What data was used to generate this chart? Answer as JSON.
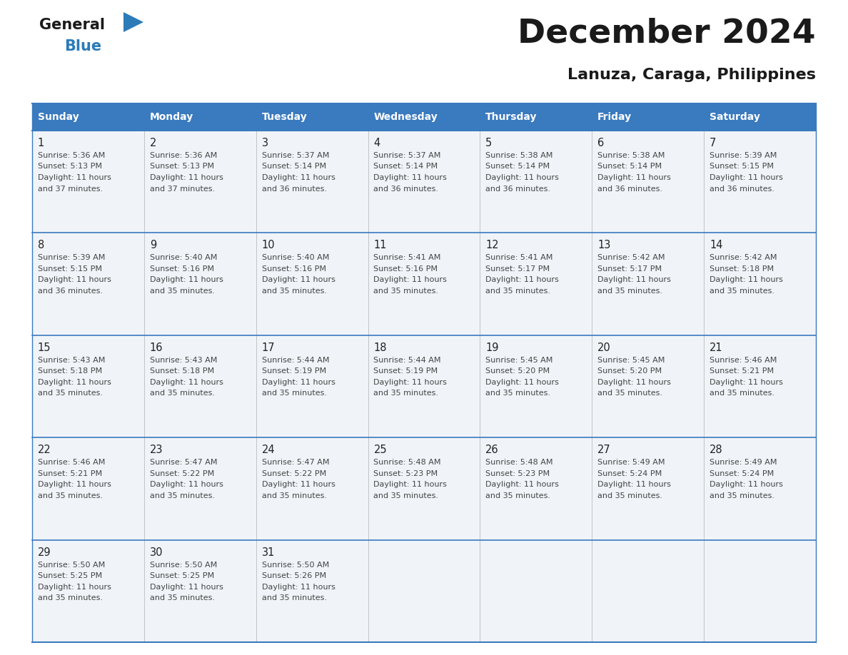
{
  "title": "December 2024",
  "subtitle": "Lanuza, Caraga, Philippines",
  "header_bg_color": "#3a7abf",
  "header_text_color": "#ffffff",
  "cell_bg_even": "#f0f4f8",
  "cell_bg_odd": "#ffffff",
  "border_color": "#3a7abf",
  "text_color": "#444444",
  "day_number_color": "#222222",
  "days_of_week": [
    "Sunday",
    "Monday",
    "Tuesday",
    "Wednesday",
    "Thursday",
    "Friday",
    "Saturday"
  ],
  "calendar_data": [
    [
      {
        "day": 1,
        "sunrise": "5:36 AM",
        "sunset": "5:13 PM",
        "daylight_line1": "Daylight: 11 hours",
        "daylight_line2": "and 37 minutes."
      },
      {
        "day": 2,
        "sunrise": "5:36 AM",
        "sunset": "5:13 PM",
        "daylight_line1": "Daylight: 11 hours",
        "daylight_line2": "and 37 minutes."
      },
      {
        "day": 3,
        "sunrise": "5:37 AM",
        "sunset": "5:14 PM",
        "daylight_line1": "Daylight: 11 hours",
        "daylight_line2": "and 36 minutes."
      },
      {
        "day": 4,
        "sunrise": "5:37 AM",
        "sunset": "5:14 PM",
        "daylight_line1": "Daylight: 11 hours",
        "daylight_line2": "and 36 minutes."
      },
      {
        "day": 5,
        "sunrise": "5:38 AM",
        "sunset": "5:14 PM",
        "daylight_line1": "Daylight: 11 hours",
        "daylight_line2": "and 36 minutes."
      },
      {
        "day": 6,
        "sunrise": "5:38 AM",
        "sunset": "5:14 PM",
        "daylight_line1": "Daylight: 11 hours",
        "daylight_line2": "and 36 minutes."
      },
      {
        "day": 7,
        "sunrise": "5:39 AM",
        "sunset": "5:15 PM",
        "daylight_line1": "Daylight: 11 hours",
        "daylight_line2": "and 36 minutes."
      }
    ],
    [
      {
        "day": 8,
        "sunrise": "5:39 AM",
        "sunset": "5:15 PM",
        "daylight_line1": "Daylight: 11 hours",
        "daylight_line2": "and 36 minutes."
      },
      {
        "day": 9,
        "sunrise": "5:40 AM",
        "sunset": "5:16 PM",
        "daylight_line1": "Daylight: 11 hours",
        "daylight_line2": "and 35 minutes."
      },
      {
        "day": 10,
        "sunrise": "5:40 AM",
        "sunset": "5:16 PM",
        "daylight_line1": "Daylight: 11 hours",
        "daylight_line2": "and 35 minutes."
      },
      {
        "day": 11,
        "sunrise": "5:41 AM",
        "sunset": "5:16 PM",
        "daylight_line1": "Daylight: 11 hours",
        "daylight_line2": "and 35 minutes."
      },
      {
        "day": 12,
        "sunrise": "5:41 AM",
        "sunset": "5:17 PM",
        "daylight_line1": "Daylight: 11 hours",
        "daylight_line2": "and 35 minutes."
      },
      {
        "day": 13,
        "sunrise": "5:42 AM",
        "sunset": "5:17 PM",
        "daylight_line1": "Daylight: 11 hours",
        "daylight_line2": "and 35 minutes."
      },
      {
        "day": 14,
        "sunrise": "5:42 AM",
        "sunset": "5:18 PM",
        "daylight_line1": "Daylight: 11 hours",
        "daylight_line2": "and 35 minutes."
      }
    ],
    [
      {
        "day": 15,
        "sunrise": "5:43 AM",
        "sunset": "5:18 PM",
        "daylight_line1": "Daylight: 11 hours",
        "daylight_line2": "and 35 minutes."
      },
      {
        "day": 16,
        "sunrise": "5:43 AM",
        "sunset": "5:18 PM",
        "daylight_line1": "Daylight: 11 hours",
        "daylight_line2": "and 35 minutes."
      },
      {
        "day": 17,
        "sunrise": "5:44 AM",
        "sunset": "5:19 PM",
        "daylight_line1": "Daylight: 11 hours",
        "daylight_line2": "and 35 minutes."
      },
      {
        "day": 18,
        "sunrise": "5:44 AM",
        "sunset": "5:19 PM",
        "daylight_line1": "Daylight: 11 hours",
        "daylight_line2": "and 35 minutes."
      },
      {
        "day": 19,
        "sunrise": "5:45 AM",
        "sunset": "5:20 PM",
        "daylight_line1": "Daylight: 11 hours",
        "daylight_line2": "and 35 minutes."
      },
      {
        "day": 20,
        "sunrise": "5:45 AM",
        "sunset": "5:20 PM",
        "daylight_line1": "Daylight: 11 hours",
        "daylight_line2": "and 35 minutes."
      },
      {
        "day": 21,
        "sunrise": "5:46 AM",
        "sunset": "5:21 PM",
        "daylight_line1": "Daylight: 11 hours",
        "daylight_line2": "and 35 minutes."
      }
    ],
    [
      {
        "day": 22,
        "sunrise": "5:46 AM",
        "sunset": "5:21 PM",
        "daylight_line1": "Daylight: 11 hours",
        "daylight_line2": "and 35 minutes."
      },
      {
        "day": 23,
        "sunrise": "5:47 AM",
        "sunset": "5:22 PM",
        "daylight_line1": "Daylight: 11 hours",
        "daylight_line2": "and 35 minutes."
      },
      {
        "day": 24,
        "sunrise": "5:47 AM",
        "sunset": "5:22 PM",
        "daylight_line1": "Daylight: 11 hours",
        "daylight_line2": "and 35 minutes."
      },
      {
        "day": 25,
        "sunrise": "5:48 AM",
        "sunset": "5:23 PM",
        "daylight_line1": "Daylight: 11 hours",
        "daylight_line2": "and 35 minutes."
      },
      {
        "day": 26,
        "sunrise": "5:48 AM",
        "sunset": "5:23 PM",
        "daylight_line1": "Daylight: 11 hours",
        "daylight_line2": "and 35 minutes."
      },
      {
        "day": 27,
        "sunrise": "5:49 AM",
        "sunset": "5:24 PM",
        "daylight_line1": "Daylight: 11 hours",
        "daylight_line2": "and 35 minutes."
      },
      {
        "day": 28,
        "sunrise": "5:49 AM",
        "sunset": "5:24 PM",
        "daylight_line1": "Daylight: 11 hours",
        "daylight_line2": "and 35 minutes."
      }
    ],
    [
      {
        "day": 29,
        "sunrise": "5:50 AM",
        "sunset": "5:25 PM",
        "daylight_line1": "Daylight: 11 hours",
        "daylight_line2": "and 35 minutes."
      },
      {
        "day": 30,
        "sunrise": "5:50 AM",
        "sunset": "5:25 PM",
        "daylight_line1": "Daylight: 11 hours",
        "daylight_line2": "and 35 minutes."
      },
      {
        "day": 31,
        "sunrise": "5:50 AM",
        "sunset": "5:26 PM",
        "daylight_line1": "Daylight: 11 hours",
        "daylight_line2": "and 35 minutes."
      },
      null,
      null,
      null,
      null
    ]
  ],
  "logo_general_color": "#1a1a1a",
  "logo_blue_color": "#2b7bb9",
  "logo_triangle_color": "#2b7bb9",
  "fig_width": 11.88,
  "fig_height": 9.18,
  "dpi": 100
}
